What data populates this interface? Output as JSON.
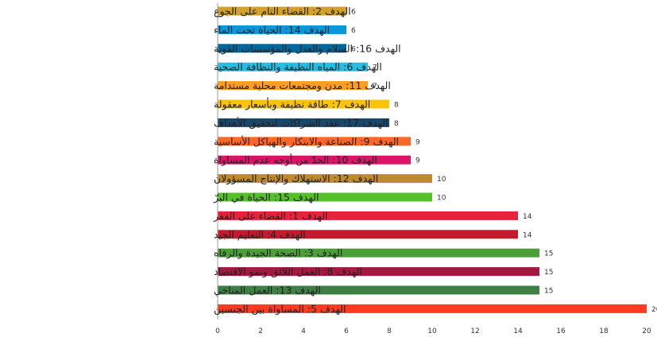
{
  "chart_data": {
    "type": "bar",
    "orientation": "horizontal",
    "title": "",
    "xlabel": "",
    "ylabel": "",
    "xlim": [
      0,
      20
    ],
    "x_ticks": [
      0,
      2,
      4,
      6,
      8,
      10,
      12,
      14,
      16,
      18,
      20
    ],
    "grid": false,
    "data_labels": true,
    "categories": [
      "الهدف 2: القضاء التام على الجوع",
      "الهدف 14: الحياة تحت الماء",
      "الهدف 16: السلام والعدل والمؤسسات القوية",
      "الهدف 6: المياه النظيفة والنظافة الصحية",
      "الهدف 11: مدن ومجتمعات محلية مستدامة",
      "الهدف 7: طاقة نظيفة وبأسعار معقولة",
      "الهدف 17: عقد الشراكات لتحقيق الأهداف",
      "الهدف 9: الصناعة والابتكار والهياكل الأساسية",
      "الهدف 10: الحدّ من أوجه عدم المساواة",
      "الهدف 12: الاستهلاك والإنتاج المسؤولان",
      "الهدف 15: الحياة في البرّ",
      "الهدف 1: القضاء على الفقر",
      "الهدف 4: التعليم الجيد",
      "الهدف 3: الصحة الجيدة والرفاه",
      "الهدف 8: العمل اللائق ونمو الاقتصاد",
      "الهدف 13: العمل المناخي",
      "الهدف 5: المساواة بين الجنسين"
    ],
    "values": [
      6,
      6,
      6,
      7,
      7,
      8,
      8,
      9,
      9,
      10,
      10,
      14,
      14,
      15,
      15,
      15,
      20
    ],
    "colors": [
      "#D3A029",
      "#0A97D9",
      "#00689D",
      "#26BDE2",
      "#FD9D24",
      "#FCC30B",
      "#19486A",
      "#FD6925",
      "#DD1367",
      "#BF8B2E",
      "#56C02B",
      "#E5243B",
      "#C5192D",
      "#4C9F38",
      "#A21942",
      "#3F7E44",
      "#FF3A21"
    ]
  }
}
